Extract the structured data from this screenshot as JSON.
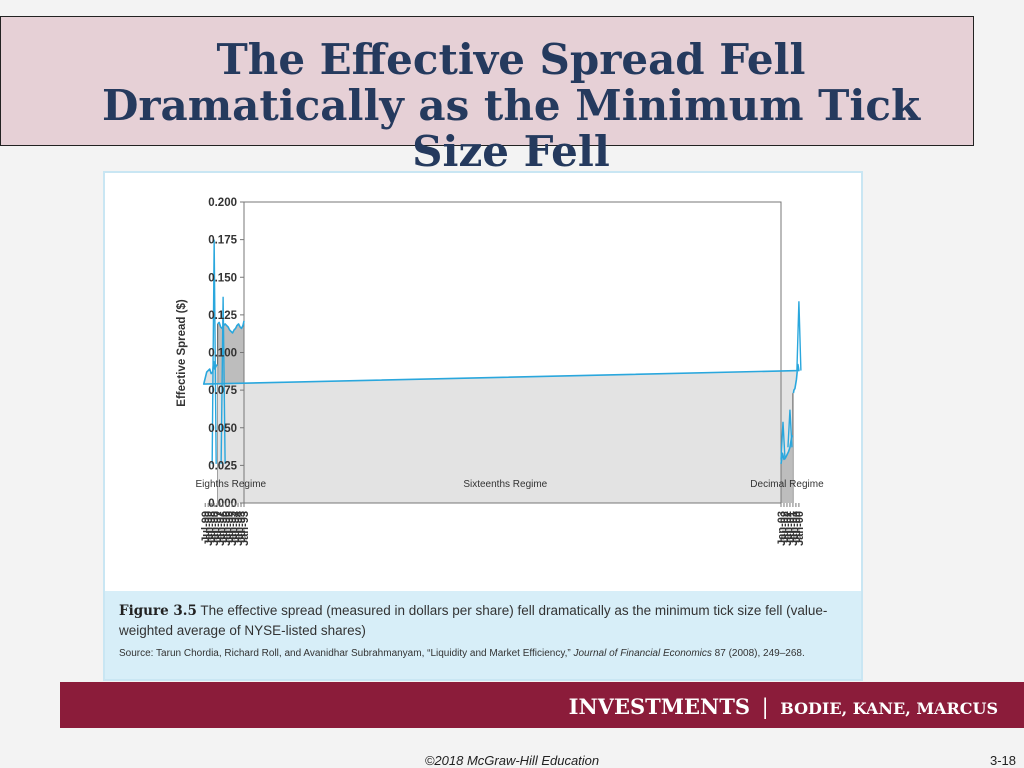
{
  "slide": {
    "title": "The Effective Spread Fell Dramatically as the Minimum Tick Size Fell",
    "figure_label": "Figure 3.5",
    "caption": "The effective spread (measured in dollars per share) fell dramatically as the minimum tick size fell (value-weighted average of NYSE-listed shares)",
    "source_prefix": "Source: Tarun Chordia, Richard Roll, and Avanidhar Subrahmanyam, “Liquidity and Market Efficiency,” ",
    "source_journal": "Journal of Financial Economics",
    "source_suffix": " 87 (2008), 249–268.",
    "brand_main": "INVESTMENTS",
    "brand_sep": "|",
    "brand_authors": "BODIE, KANE, MARCUS",
    "copyright": "©2018 McGraw-Hill Education",
    "slide_number": "3-18"
  },
  "chart_data": {
    "type": "area",
    "title": "",
    "xlabel": "",
    "ylabel": "Effective Spread ($)",
    "xlim": [
      "Jan-93",
      "Jan-03"
    ],
    "ylim": [
      0,
      0.2
    ],
    "yticks": [
      "0.000",
      "0.025",
      "0.050",
      "0.075",
      "0.100",
      "0.125",
      "0.150",
      "0.175",
      "0.200"
    ],
    "xticks": [
      "Jan-93",
      "Jul-93",
      "Jan-94",
      "Jul-94",
      "Jan-95",
      "Jul-95",
      "Jan-96",
      "Jul-96",
      "Jan-97",
      "Jul-97",
      "Jan-98",
      "Jul-98",
      "Jan-99",
      "Jul-99",
      "Jan-00",
      "Jul-00",
      "Jan-01",
      "Jul-01",
      "Jan-02",
      "Jul-02",
      "Jan-03"
    ],
    "regimes": [
      {
        "label": "Eighths Regime",
        "start": "Jan-93",
        "end": "Jun-97",
        "color": "#bdbdbd"
      },
      {
        "label": "Sixteenths Regime",
        "start": "Jun-97",
        "end": "Jan-01",
        "color": "#e3e3e3"
      },
      {
        "label": "Decimal Regime",
        "start": "Jan-01",
        "end": "Jan-03",
        "color": "#bdbdbd"
      }
    ],
    "series": [
      {
        "color": "#2aa7dd",
        "points": [
          [
            "Jan-93",
            0.121
          ],
          [
            "Mar-93",
            0.118
          ],
          [
            "Jun-93",
            0.116
          ],
          [
            "Sep-93",
            0.117
          ],
          [
            "Dec-93",
            0.119
          ],
          [
            "Mar-94",
            0.118
          ],
          [
            "Jun-94",
            0.116
          ],
          [
            "Sep-94",
            0.115
          ],
          [
            "Dec-94",
            0.113
          ],
          [
            "Mar-95",
            0.114
          ],
          [
            "Jun-95",
            0.115
          ],
          [
            "Sep-95",
            0.117
          ],
          [
            "Dec-95",
            0.118
          ],
          [
            "Mar-96",
            0.119
          ],
          [
            "Jun-96",
            0.118
          ],
          [
            "Sep-96",
            0.116
          ],
          [
            "Dec-96",
            0.117
          ],
          [
            "Mar-97",
            0.12
          ],
          [
            "Jun-97",
            0.119
          ],
          [
            "Jul-97",
            0.092
          ],
          [
            "Sep-97",
            0.091
          ],
          [
            "Dec-97",
            0.089
          ],
          [
            "Feb-98",
            0.094
          ],
          [
            "Apr-98",
            0.087
          ],
          [
            "Jul-98",
            0.086
          ],
          [
            "Oct-98",
            0.089
          ],
          [
            "Jan-99",
            0.088
          ],
          [
            "Apr-99",
            0.087
          ],
          [
            "Jul-99",
            0.083
          ],
          [
            "Oct-99",
            0.079
          ],
          [
            "Jan-00",
            0.088
          ],
          [
            "Mar-00",
            0.092
          ],
          [
            "Jun-00",
            0.082
          ],
          [
            "Sep-00",
            0.076
          ],
          [
            "Nov-00",
            0.075
          ],
          [
            "Dec-00",
            0.073
          ],
          [
            "Feb-01",
            0.045
          ],
          [
            "Apr-01",
            0.043
          ],
          [
            "Jul-01",
            0.037
          ],
          [
            "Oct-01",
            0.034
          ],
          [
            "Jan-02",
            0.032
          ],
          [
            "Apr-02",
            0.03
          ],
          [
            "Jul-02",
            0.029
          ],
          [
            "Oct-02",
            0.033
          ],
          [
            "Jan-03",
            0.026
          ]
        ],
        "spikes": [
          [
            "Jan-98",
            0.175
          ],
          [
            "Jan-00",
            0.134
          ],
          [
            "Jul-96",
            0.137
          ],
          [
            "Jul-01",
            0.062
          ],
          [
            "Sep-02",
            0.054
          ]
        ]
      }
    ]
  }
}
